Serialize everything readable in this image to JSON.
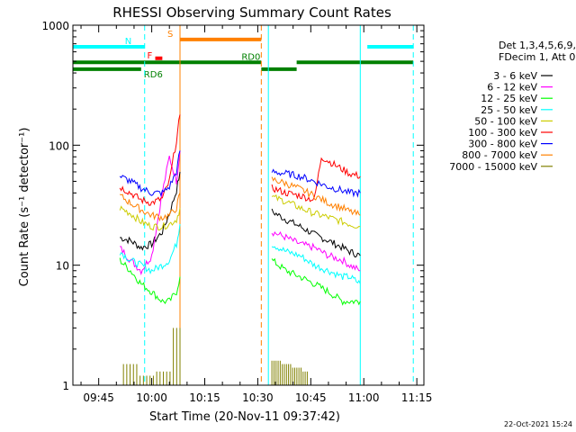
{
  "chart_data": {
    "type": "line",
    "title": "RHESSI Observing Summary Count Rates",
    "xlabel": "Start Time (20-Nov-11 09:37:42)",
    "ylabel": "Count Rate (s⁻¹ detector⁻¹)",
    "y_scale": "log",
    "ylim": [
      1,
      1000
    ],
    "xlim": [
      "09:37:42",
      "11:17:00"
    ],
    "x_ticks": [
      "09:45",
      "10:00",
      "10:15",
      "10:30",
      "10:45",
      "11:00",
      "11:15"
    ],
    "y_ticks": [
      "1",
      "10",
      "100",
      "1000"
    ],
    "timestamp": "22-Oct-2021 15:24",
    "legend_header": [
      "Det 1,3,4,5,6,9,",
      "FDecim 1, Att 0"
    ],
    "series": [
      {
        "name": "3 - 6 keV",
        "color": "#000000",
        "segments": [
          {
            "t": [
              "09:51",
              "09:54",
              "09:57",
              "10:00",
              "10:03",
              "10:05",
              "10:07",
              "10:08"
            ],
            "v": [
              17,
              16,
              14,
              15,
              19,
              27,
              42,
              60
            ]
          },
          {
            "t": [
              "10:34",
              "10:38",
              "10:42",
              "10:46",
              "10:50",
              "10:54",
              "10:56",
              "10:59"
            ],
            "v": [
              28,
              24,
              21,
              18,
              16,
              14,
              13,
              12
            ]
          }
        ]
      },
      {
        "name": "6 - 12 keV",
        "color": "#ff00ff",
        "segments": [
          {
            "t": [
              "09:51",
              "09:54",
              "09:57",
              "10:00",
              "10:03",
              "10:05",
              "10:07",
              "10:08"
            ],
            "v": [
              14,
              11,
              9,
              12,
              40,
              80,
              50,
              90
            ]
          },
          {
            "t": [
              "10:34",
              "10:38",
              "10:42",
              "10:46",
              "10:50",
              "10:54",
              "10:56",
              "10:59"
            ],
            "v": [
              19,
              17,
              15,
              14,
              12,
              11,
              10,
              9
            ]
          }
        ]
      },
      {
        "name": "12 - 25 keV",
        "color": "#00ff00",
        "segments": [
          {
            "t": [
              "09:51",
              "09:54",
              "09:57",
              "10:00",
              "10:03",
              "10:05",
              "10:07",
              "10:08"
            ],
            "v": [
              11,
              9,
              7,
              6,
              5,
              5,
              6,
              8
            ]
          },
          {
            "t": [
              "10:34",
              "10:38",
              "10:42",
              "10:46",
              "10:50",
              "10:54",
              "10:56",
              "10:59"
            ],
            "v": [
              11,
              9,
              8,
              7,
              6,
              5,
              5,
              5
            ]
          }
        ]
      },
      {
        "name": "25 - 50 keV",
        "color": "#00ffff",
        "segments": [
          {
            "t": [
              "09:51",
              "09:54",
              "09:57",
              "10:00",
              "10:03",
              "10:05",
              "10:07",
              "10:08"
            ],
            "v": [
              13,
              11,
              10,
              9,
              10,
              11,
              15,
              22
            ]
          },
          {
            "t": [
              "10:34",
              "10:38",
              "10:42",
              "10:46",
              "10:50",
              "10:54",
              "10:56",
              "10:59"
            ],
            "v": [
              15,
              13,
              12,
              10,
              9,
              8,
              8,
              7
            ]
          }
        ]
      },
      {
        "name": "50 - 100 keV",
        "color": "#cccc00",
        "segments": [
          {
            "t": [
              "09:51",
              "09:54",
              "09:57",
              "10:00",
              "10:03",
              "10:05",
              "10:07",
              "10:08"
            ],
            "v": [
              30,
              27,
              23,
              21,
              21,
              22,
              24,
              30
            ]
          },
          {
            "t": [
              "10:34",
              "10:38",
              "10:42",
              "10:46",
              "10:50",
              "10:54",
              "10:56",
              "10:59"
            ],
            "v": [
              37,
              34,
              30,
              27,
              25,
              23,
              22,
              21
            ]
          }
        ]
      },
      {
        "name": "100 - 300 keV",
        "color": "#ff0000",
        "segments": [
          {
            "t": [
              "09:51",
              "09:54",
              "09:57",
              "10:00",
              "10:03",
              "10:05",
              "10:07",
              "10:08"
            ],
            "v": [
              45,
              40,
              35,
              33,
              36,
              50,
              110,
              180
            ]
          },
          {
            "t": [
              "10:34",
              "10:38",
              "10:42",
              "10:46",
              "10:48",
              "10:52",
              "10:56",
              "10:59"
            ],
            "v": [
              44,
              40,
              38,
              35,
              80,
              68,
              58,
              55
            ]
          }
        ]
      },
      {
        "name": "300 - 800 keV",
        "color": "#0000ff",
        "segments": [
          {
            "t": [
              "09:51",
              "09:54",
              "09:57",
              "10:00",
              "10:03",
              "10:05",
              "10:07",
              "10:08"
            ],
            "v": [
              55,
              50,
              44,
              40,
              40,
              45,
              60,
              90
            ]
          },
          {
            "t": [
              "10:34",
              "10:38",
              "10:42",
              "10:46",
              "10:50",
              "10:54",
              "10:56",
              "10:59"
            ],
            "v": [
              60,
              58,
              55,
              50,
              45,
              42,
              40,
              40
            ]
          }
        ]
      },
      {
        "name": "800 - 7000 keV",
        "color": "#ff8000",
        "segments": [
          {
            "t": [
              "09:51",
              "09:54",
              "09:57",
              "10:00",
              "10:03",
              "10:05",
              "10:07",
              "10:08"
            ],
            "v": [
              38,
              33,
              29,
              26,
              25,
              26,
              30,
              40
            ]
          },
          {
            "t": [
              "10:34",
              "10:38",
              "10:42",
              "10:46",
              "10:50",
              "10:54",
              "10:56",
              "10:59"
            ],
            "v": [
              52,
              48,
              43,
              38,
              33,
              30,
              28,
              26
            ]
          }
        ]
      },
      {
        "name": "7000 - 15000 keV",
        "color": "#808000",
        "segments": [
          {
            "t": [
              "09:52",
              "09:53",
              "10:07",
              "10:08"
            ],
            "v": [
              1.5,
              1.2,
              1.3,
              3.0
            ]
          },
          {
            "t": [
              "10:34",
              "10:36",
              "10:40",
              "10:44"
            ],
            "v": [
              1.6,
              1.5,
              1.4,
              1.3
            ]
          }
        ]
      }
    ],
    "state_bars": [
      {
        "label": "N",
        "color": "#00ffff",
        "level": 660,
        "segments": [
          [
            "09:37:42",
            "09:58"
          ],
          [
            "11:01",
            "11:14"
          ]
        ]
      },
      {
        "label": "S",
        "color": "#ff8000",
        "level": 760,
        "segments": [
          [
            "10:08",
            "10:31"
          ]
        ]
      },
      {
        "label": "F",
        "color": "#ff0000",
        "level": 530,
        "segments": [
          [
            "10:01",
            "10:03"
          ]
        ]
      },
      {
        "label": "RD0",
        "color": "#008000",
        "level": 490,
        "segments": [
          [
            "09:37:42",
            "10:31"
          ],
          [
            "10:41",
            "11:14"
          ]
        ]
      },
      {
        "label": "RD6",
        "color": "#008000",
        "level": 430,
        "segments": [
          [
            "09:37:42",
            "09:57"
          ],
          [
            "10:31",
            "10:41"
          ]
        ]
      }
    ],
    "vlines": [
      {
        "time": "09:58",
        "color": "#00ffff",
        "style": "dashed"
      },
      {
        "time": "10:08",
        "color": "#ff8000",
        "style": "solid"
      },
      {
        "time": "10:31",
        "color": "#ff8000",
        "style": "dashed"
      },
      {
        "time": "10:33",
        "color": "#00ffff",
        "style": "solid"
      },
      {
        "time": "10:59",
        "color": "#00ffff",
        "style": "solid"
      },
      {
        "time": "11:14",
        "color": "#00ffff",
        "style": "dashed"
      }
    ]
  }
}
